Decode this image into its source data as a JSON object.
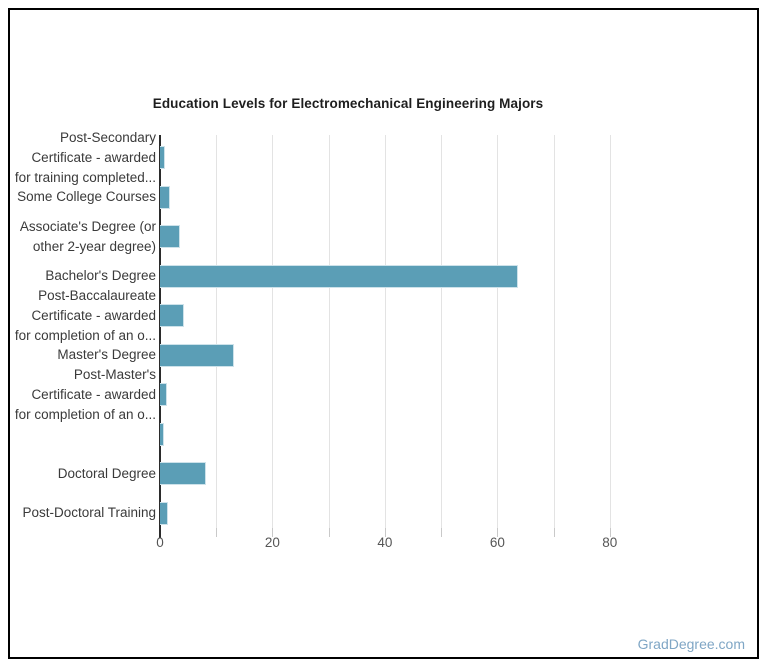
{
  "page": {
    "background": "#ffffff",
    "frame_border_color": "#000000"
  },
  "watermark": {
    "text": "GradDegree.com",
    "color": "#7fa6c5"
  },
  "chart_data": {
    "type": "bar",
    "orientation": "horizontal",
    "title": "Education Levels for Electromechanical Engineering Majors",
    "categories": [
      "Post-Secondary Certificate - awarded for training completed...",
      "Some College Courses",
      "Associate's Degree (or other 2-year degree)",
      "Bachelor's Degree",
      "Post-Baccalaureate Certificate - awarded for completion of an o...",
      "Master's Degree",
      "Post-Master's Certificate - awarded for completion of an o...",
      "",
      "Doctoral Degree",
      "Post-Doctoral Training"
    ],
    "category_label_lines": [
      [
        "Post-Secondary",
        "Certificate - awarded",
        "for training completed..."
      ],
      [
        "Some College Courses"
      ],
      [
        "Associate's Degree (or",
        "other 2-year degree)"
      ],
      [
        "Bachelor's Degree"
      ],
      [
        "Post-Baccalaureate",
        "Certificate - awarded",
        "for completion of an o..."
      ],
      [
        "Master's Degree"
      ],
      [
        "Post-Master's",
        "Certificate - awarded",
        "for completion of an o..."
      ],
      [],
      [
        "Doctoral Degree"
      ],
      [
        "Post-Doctoral Training"
      ]
    ],
    "values": [
      0.9,
      1.8,
      3.6,
      63.6,
      4.2,
      13.1,
      1.2,
      0.8,
      8.2,
      1.5
    ],
    "xlabel": "",
    "ylabel": "",
    "xlim": [
      0,
      90
    ],
    "x_tick_labels": [
      "0",
      "20",
      "40",
      "60",
      "80"
    ],
    "x_tick_label_values": [
      0,
      20,
      40,
      60,
      80
    ],
    "grid_values": [
      10,
      20,
      30,
      40,
      50,
      60,
      70,
      80
    ],
    "grid": "vertical",
    "legend": "none",
    "bar_color": "#5b9eb6",
    "bar_border_color": "#cde2ea",
    "grid_color": "#e3e3e3",
    "axis_color": "#2b2b2b",
    "tick_label_color": "#565656",
    "label_color": "#3a3a3a",
    "title_color": "#1e1e1e"
  }
}
